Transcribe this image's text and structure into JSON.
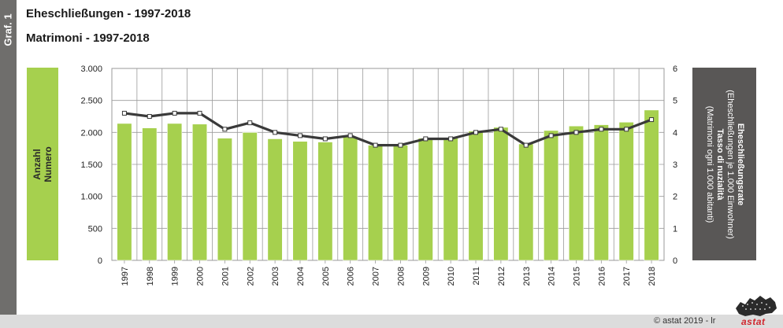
{
  "side_tab": {
    "label": "Graf. 1"
  },
  "titles": {
    "de": "Eheschließungen - 1997-2018",
    "it": "Matrimoni - 1997-2018"
  },
  "left_axis_box": {
    "line1": "Anzahl",
    "line2": "Numero"
  },
  "right_axis_box": {
    "line1": "Eheschließungsrate",
    "line2": "(Eheschließungen je 1.000 Einwohner)",
    "line3": "Tasso di nuzialità",
    "line4": "(Matrimoni ogni 1.000 abitanti)"
  },
  "footer": {
    "credit": "© astat 2019 - lr",
    "logo_text": "astat"
  },
  "colors": {
    "bar": "#a6d04e",
    "bar_edge": "#ffffff",
    "line": "#3a3a3a",
    "marker": "#ffffff",
    "grid": "#9a9a9a",
    "plot_bg": "#ffffff",
    "accent_green": "#a6d04e",
    "accent_dark": "#595756"
  },
  "chart_data": {
    "type": "bar",
    "categories": [
      "1997",
      "1998",
      "1999",
      "2000",
      "2001",
      "2002",
      "2003",
      "2004",
      "2005",
      "2006",
      "2007",
      "2008",
      "2009",
      "2010",
      "2011",
      "2012",
      "2013",
      "2014",
      "2015",
      "2016",
      "2017",
      "2018"
    ],
    "series": [
      {
        "axis": "left",
        "type": "bar",
        "values": [
          2140,
          2070,
          2140,
          2130,
          1910,
          2000,
          1900,
          1860,
          1850,
          1930,
          1800,
          1800,
          1910,
          1920,
          2020,
          2080,
          1820,
          2030,
          2100,
          2120,
          2160,
          2350
        ]
      },
      {
        "axis": "right",
        "type": "line",
        "values": [
          4.6,
          4.5,
          4.6,
          4.6,
          4.1,
          4.3,
          4.0,
          3.9,
          3.8,
          3.9,
          3.6,
          3.6,
          3.8,
          3.8,
          4.0,
          4.1,
          3.6,
          3.9,
          4.0,
          4.1,
          4.1,
          4.4
        ]
      }
    ],
    "y_left": {
      "lim": [
        0,
        3000
      ],
      "ticks": [
        0,
        500,
        1000,
        1500,
        2000,
        2500,
        3000
      ],
      "tick_labels": [
        "0",
        "500",
        "1.000",
        "1.500",
        "2.000",
        "2.500",
        "3.000"
      ]
    },
    "y_right": {
      "lim": [
        0,
        6
      ],
      "ticks": [
        0,
        1,
        2,
        3,
        4,
        5,
        6
      ],
      "tick_labels": [
        "0",
        "1",
        "2",
        "3",
        "4",
        "5",
        "6"
      ]
    },
    "grid": "both"
  }
}
